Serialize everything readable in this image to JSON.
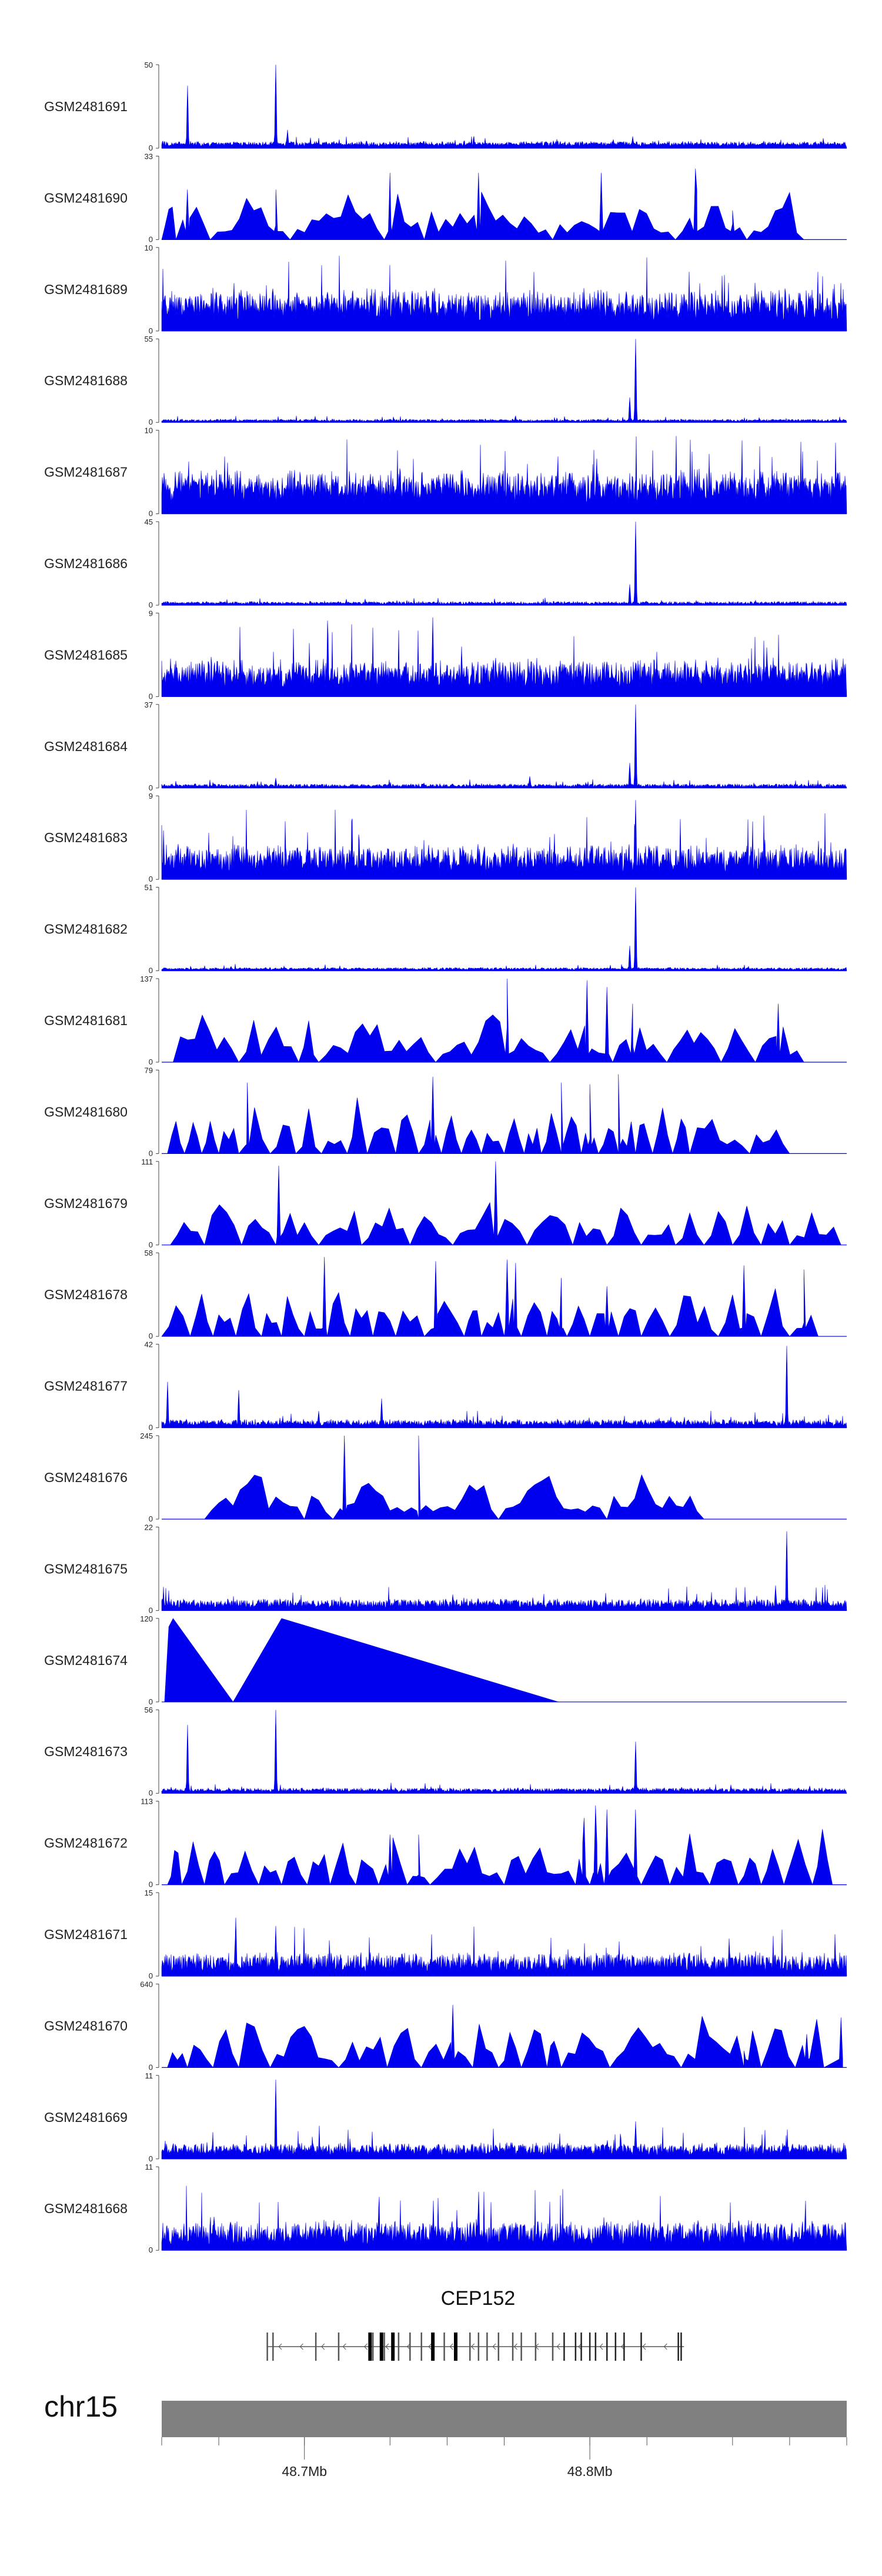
{
  "chart_data": {
    "type": "area",
    "track_color": "#0000ee",
    "region": {
      "chrom": "chr15",
      "start_mb": 48.65,
      "end_mb": 48.89
    },
    "tracks": [
      {
        "name": "GSM2481691",
        "ymax": 50,
        "style": "dense",
        "base": 0.05,
        "noise": 0.07,
        "peaks": [
          [
            48.659,
            0.75
          ],
          [
            48.69,
            1.0
          ],
          [
            48.694,
            0.22
          ],
          [
            48.815,
            0.14
          ]
        ]
      },
      {
        "name": "GSM2481690",
        "ymax": 33,
        "style": "sparse",
        "gaps": [
          48.65,
          48.655,
          48.667,
          48.695,
          48.728,
          48.742,
          48.787,
          48.83,
          48.855,
          48.875
        ],
        "spikes": [
          [
            48.659,
            0.6
          ],
          [
            48.69,
            0.6
          ],
          [
            48.73,
            0.8
          ],
          [
            48.761,
            0.8
          ],
          [
            48.804,
            0.8
          ],
          [
            48.837,
            0.85
          ],
          [
            48.85,
            0.35
          ]
        ]
      },
      {
        "name": "GSM2481689",
        "ymax": 10,
        "style": "dense",
        "base": 0.28,
        "noise": 0.45,
        "peaks": []
      },
      {
        "name": "GSM2481688",
        "ymax": 55,
        "style": "dense",
        "base": 0.02,
        "noise": 0.04,
        "peaks": [
          [
            48.816,
            1.0
          ],
          [
            48.814,
            0.3
          ]
        ]
      },
      {
        "name": "GSM2481687",
        "ymax": 10,
        "style": "dense",
        "base": 0.3,
        "noise": 0.45,
        "peaks": []
      },
      {
        "name": "GSM2481686",
        "ymax": 45,
        "style": "dense",
        "base": 0.02,
        "noise": 0.05,
        "peaks": [
          [
            48.816,
            1.0
          ],
          [
            48.814,
            0.25
          ]
        ]
      },
      {
        "name": "GSM2481685",
        "ymax": 9,
        "style": "dense",
        "base": 0.22,
        "noise": 0.45,
        "peaks": [
          [
            48.745,
            0.95
          ],
          [
            48.755,
            0.6
          ]
        ]
      },
      {
        "name": "GSM2481684",
        "ymax": 37,
        "style": "dense",
        "base": 0.02,
        "noise": 0.06,
        "peaks": [
          [
            48.816,
            1.0
          ],
          [
            48.814,
            0.3
          ],
          [
            48.69,
            0.12
          ],
          [
            48.779,
            0.14
          ]
        ]
      },
      {
        "name": "GSM2481683",
        "ymax": 9,
        "style": "dense",
        "base": 0.18,
        "noise": 0.45,
        "peaks": [
          [
            48.816,
            0.95
          ]
        ]
      },
      {
        "name": "GSM2481682",
        "ymax": 51,
        "style": "dense",
        "base": 0.02,
        "noise": 0.04,
        "peaks": [
          [
            48.816,
            1.0
          ],
          [
            48.814,
            0.3
          ]
        ]
      },
      {
        "name": "GSM2481681",
        "ymax": 137,
        "style": "sparse",
        "gaps": [
          48.654,
          48.677,
          48.698,
          48.705,
          48.746,
          48.786,
          48.808,
          48.827,
          48.846,
          48.858,
          48.875
        ],
        "spikes": [
          [
            48.771,
            1.0
          ],
          [
            48.799,
            0.98
          ],
          [
            48.806,
            0.9
          ],
          [
            48.815,
            0.7
          ],
          [
            48.866,
            0.7
          ]
        ]
      },
      {
        "name": "GSM2481680",
        "ymax": 79,
        "style": "sparse",
        "gaps": [
          48.652,
          48.658,
          48.664,
          48.67,
          48.677,
          48.688,
          48.697,
          48.706,
          48.715,
          48.722,
          48.732,
          48.74,
          48.748,
          48.755,
          48.762,
          48.77,
          48.777,
          48.783,
          48.79,
          48.797,
          48.803,
          48.81,
          48.816,
          48.822,
          48.829,
          48.835,
          48.856,
          48.87
        ],
        "spikes": [
          [
            48.68,
            0.85
          ],
          [
            48.745,
            0.92
          ],
          [
            48.79,
            0.85
          ],
          [
            48.8,
            0.83
          ],
          [
            48.81,
            0.95
          ]
        ]
      },
      {
        "name": "GSM2481679",
        "ymax": 111,
        "style": "sparse",
        "gaps": [
          48.653,
          48.665,
          48.678,
          48.69,
          48.705,
          48.72,
          48.737,
          48.752,
          48.778,
          48.794,
          48.806,
          48.818,
          48.83,
          48.84,
          48.85,
          48.86,
          48.87,
          48.888
        ],
        "spikes": [
          [
            48.691,
            0.95
          ],
          [
            48.767,
            1.0
          ]
        ]
      },
      {
        "name": "GSM2481678",
        "ymax": 58,
        "style": "sparse",
        "gaps": [
          48.65,
          48.66,
          48.668,
          48.676,
          48.685,
          48.692,
          48.7,
          48.708,
          48.716,
          48.724,
          48.732,
          48.742,
          48.756,
          48.762,
          48.77,
          48.776,
          48.785,
          48.792,
          48.8,
          48.81,
          48.818,
          48.828,
          48.845,
          48.86,
          48.87,
          48.88
        ],
        "spikes": [
          [
            48.707,
            0.95
          ],
          [
            48.746,
            0.9
          ],
          [
            48.771,
            0.92
          ],
          [
            48.774,
            0.88
          ],
          [
            48.79,
            0.7
          ],
          [
            48.806,
            0.6
          ],
          [
            48.854,
            0.85
          ],
          [
            48.875,
            0.8
          ]
        ]
      },
      {
        "name": "GSM2481677",
        "ymax": 42,
        "style": "dense",
        "base": 0.04,
        "noise": 0.12,
        "peaks": [
          [
            48.652,
            0.55
          ],
          [
            48.677,
            0.45
          ],
          [
            48.705,
            0.2
          ],
          [
            48.727,
            0.35
          ],
          [
            48.869,
            0.98
          ]
        ]
      },
      {
        "name": "GSM2481676",
        "ymax": 245,
        "style": "sparse",
        "gaps": [
          48.665,
          48.7,
          48.71,
          48.74,
          48.768,
          48.806,
          48.84
        ],
        "spikes": [
          [
            48.714,
            1.0
          ],
          [
            48.74,
            1.0
          ]
        ]
      },
      {
        "name": "GSM2481675",
        "ymax": 22,
        "style": "dense",
        "base": 0.06,
        "noise": 0.16,
        "peaks": [
          [
            48.869,
            0.95
          ],
          [
            48.865,
            0.3
          ]
        ]
      },
      {
        "name": "GSM2481674",
        "ymax": 120,
        "style": "tri",
        "shape": [
          [
            48.651,
            0
          ],
          [
            48.6525,
            0.9
          ],
          [
            48.654,
            1.0
          ],
          [
            48.675,
            0
          ],
          [
            48.692,
            1.0
          ],
          [
            48.789,
            0
          ]
        ]
      },
      {
        "name": "GSM2481673",
        "ymax": 56,
        "style": "dense",
        "base": 0.03,
        "noise": 0.07,
        "peaks": [
          [
            48.659,
            0.82
          ],
          [
            48.69,
            1.0
          ],
          [
            48.816,
            0.62
          ]
        ]
      },
      {
        "name": "GSM2481672",
        "ymax": 113,
        "style": "sparse",
        "gaps": [
          48.652,
          48.657,
          48.665,
          48.672,
          48.684,
          48.692,
          48.701,
          48.709,
          48.718,
          48.726,
          48.736,
          48.744,
          48.77,
          48.795,
          48.8,
          48.805,
          48.818,
          48.828,
          48.842,
          48.852,
          48.86,
          48.868,
          48.878,
          48.885
        ],
        "spikes": [
          [
            48.73,
            0.6
          ],
          [
            48.74,
            0.6
          ],
          [
            48.798,
            0.8
          ],
          [
            48.802,
            0.95
          ],
          [
            48.806,
            0.9
          ],
          [
            48.816,
            0.9
          ]
        ]
      },
      {
        "name": "GSM2481671",
        "ymax": 15,
        "style": "dense",
        "base": 0.1,
        "noise": 0.35,
        "peaks": [
          [
            48.676,
            0.7
          ],
          [
            48.69,
            0.6
          ]
        ]
      },
      {
        "name": "GSM2481670",
        "ymax": 640,
        "style": "sparse",
        "gaps": [
          48.652,
          48.659,
          48.668,
          48.677,
          48.688,
          48.712,
          48.729,
          48.741,
          48.759,
          48.768,
          48.776,
          48.785,
          48.79,
          48.807,
          48.832,
          48.854,
          48.86,
          48.872,
          48.882
        ],
        "spikes": [
          [
            48.752,
            0.75
          ],
          [
            48.854,
            0.2
          ],
          [
            48.876,
            0.4
          ],
          [
            48.888,
            0.6
          ]
        ]
      },
      {
        "name": "GSM2481669",
        "ymax": 11,
        "style": "dense",
        "base": 0.08,
        "noise": 0.22,
        "peaks": [
          [
            48.69,
            0.95
          ],
          [
            48.816,
            0.45
          ]
        ]
      },
      {
        "name": "GSM2481668",
        "ymax": 11,
        "style": "dense",
        "base": 0.12,
        "noise": 0.45,
        "peaks": [
          [
            48.761,
            0.7
          ]
        ]
      }
    ],
    "gene": {
      "name": "CEP152",
      "start_mb": 48.687,
      "end_mb": 48.833,
      "strand": "-",
      "exons": [
        48.687,
        48.689,
        48.704,
        48.712,
        48.723,
        48.724,
        48.727,
        48.728,
        48.731,
        48.733,
        48.737,
        48.741,
        48.745,
        48.749,
        48.753,
        48.758,
        48.761,
        48.764,
        48.768,
        48.773,
        48.776,
        48.781,
        48.787,
        48.791,
        48.795,
        48.797,
        48.8,
        48.802,
        48.806,
        48.809,
        48.812,
        48.818,
        48.831,
        48.832
      ],
      "thick_exons": [
        48.723,
        48.727,
        48.731,
        48.745,
        48.753
      ]
    },
    "chromosome": {
      "label": "chr15",
      "ticks": [
        48.65,
        48.67,
        48.7,
        48.73,
        48.75,
        48.77,
        48.8,
        48.82,
        48.85,
        48.87,
        48.89
      ],
      "labelled_ticks": [
        {
          "pos": 48.7,
          "label": "48.7Mb"
        },
        {
          "pos": 48.8,
          "label": "48.8Mb"
        }
      ]
    }
  }
}
